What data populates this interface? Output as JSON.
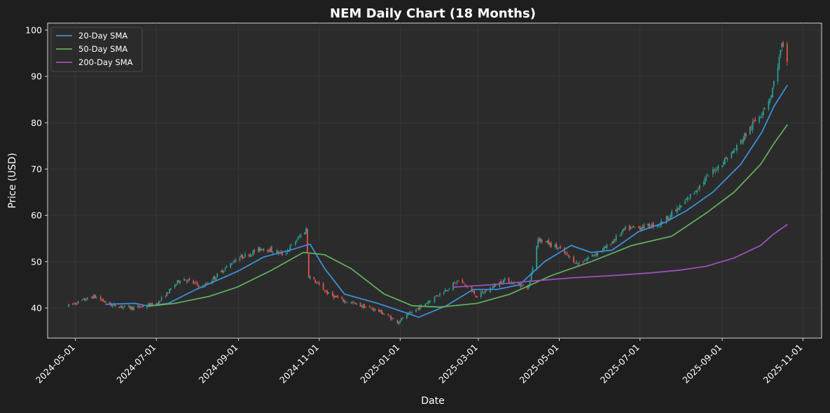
{
  "chart_data": {
    "type": "candlestick",
    "title": "NEM Daily Chart (18 Months)",
    "xlabel": "Date",
    "ylabel": "Price (USD)",
    "ylim": [
      33.5,
      101.5
    ],
    "xlim": [
      "2024-04-10",
      "2025-11-15"
    ],
    "grid": true,
    "legend_placement": "top-left",
    "colors": {
      "background": "#1e1e1e",
      "plot_background": "#2b2b2b",
      "grid": "#3d3d3d",
      "up": "#26a69a",
      "down": "#ef5350",
      "sma20": "#3a8fd8",
      "sma50": "#5fae5f",
      "sma200": "#9b4fb8"
    },
    "x_ticks": [
      "2024-05-01",
      "2024-07-01",
      "2024-09-01",
      "2024-11-01",
      "2025-01-01",
      "2025-03-01",
      "2025-05-01",
      "2025-07-01",
      "2025-09-01",
      "2025-11-01"
    ],
    "y_ticks": [
      40,
      50,
      60,
      70,
      80,
      90,
      100
    ],
    "price_path": [
      [
        "2024-04-26",
        40.5
      ],
      [
        "2024-05-15",
        42.5
      ],
      [
        "2024-05-28",
        40.6
      ],
      [
        "2024-06-15",
        40.0
      ],
      [
        "2024-07-02",
        41.0
      ],
      [
        "2024-07-20",
        46.5
      ],
      [
        "2024-08-05",
        44.5
      ],
      [
        "2024-08-30",
        50.5
      ],
      [
        "2024-09-20",
        53.0
      ],
      [
        "2024-10-05",
        51.5
      ],
      [
        "2024-10-22",
        57.0
      ],
      [
        "2024-10-24",
        47.0
      ],
      [
        "2024-11-08",
        43.0
      ],
      [
        "2024-11-20",
        41.5
      ],
      [
        "2024-12-15",
        39.5
      ],
      [
        "2024-12-30",
        37.0
      ],
      [
        "2025-01-20",
        41.0
      ],
      [
        "2025-02-15",
        46.0
      ],
      [
        "2025-02-28",
        42.5
      ],
      [
        "2025-03-20",
        46.0
      ],
      [
        "2025-04-08",
        44.5
      ],
      [
        "2025-04-15",
        55.0
      ],
      [
        "2025-04-30",
        53.0
      ],
      [
        "2025-05-15",
        49.5
      ],
      [
        "2025-06-05",
        53.0
      ],
      [
        "2025-06-20",
        57.0
      ],
      [
        "2025-07-15",
        58.0
      ],
      [
        "2025-08-01",
        62.0
      ],
      [
        "2025-08-20",
        68.0
      ],
      [
        "2025-09-10",
        74.0
      ],
      [
        "2025-09-30",
        82.0
      ],
      [
        "2025-10-08",
        86.0
      ],
      [
        "2025-10-16",
        96.5
      ],
      [
        "2025-10-20",
        93.5
      ]
    ],
    "series": [
      {
        "name": "20-Day SMA",
        "points": [
          [
            "2024-05-24",
            40.8
          ],
          [
            "2024-06-15",
            41.0
          ],
          [
            "2024-06-25",
            40.4
          ],
          [
            "2024-07-10",
            41.0
          ],
          [
            "2024-07-31",
            44.0
          ],
          [
            "2024-08-20",
            46.5
          ],
          [
            "2024-09-01",
            48.0
          ],
          [
            "2024-09-20",
            51.0
          ],
          [
            "2024-10-10",
            52.5
          ],
          [
            "2024-10-25",
            53.8
          ],
          [
            "2024-11-05",
            48.5
          ],
          [
            "2024-11-20",
            43.0
          ],
          [
            "2024-12-15",
            41.0
          ],
          [
            "2025-01-05",
            39.0
          ],
          [
            "2025-01-15",
            38.0
          ],
          [
            "2025-02-05",
            40.5
          ],
          [
            "2025-02-25",
            44.0
          ],
          [
            "2025-03-15",
            44.0
          ],
          [
            "2025-04-01",
            45.0
          ],
          [
            "2025-04-20",
            50.0
          ],
          [
            "2025-05-10",
            53.5
          ],
          [
            "2025-05-25",
            52.0
          ],
          [
            "2025-06-10",
            52.5
          ],
          [
            "2025-06-30",
            56.5
          ],
          [
            "2025-07-20",
            58.5
          ],
          [
            "2025-08-05",
            61.0
          ],
          [
            "2025-08-25",
            65.0
          ],
          [
            "2025-09-15",
            71.0
          ],
          [
            "2025-10-01",
            78.0
          ],
          [
            "2025-10-10",
            83.5
          ],
          [
            "2025-10-20",
            88.0
          ]
        ]
      },
      {
        "name": "50-Day SMA",
        "points": [
          [
            "2024-06-25",
            40.4
          ],
          [
            "2024-07-15",
            41.0
          ],
          [
            "2024-08-10",
            42.5
          ],
          [
            "2024-08-31",
            44.5
          ],
          [
            "2024-09-25",
            48.0
          ],
          [
            "2024-10-20",
            52.0
          ],
          [
            "2024-11-05",
            51.5
          ],
          [
            "2024-11-25",
            48.5
          ],
          [
            "2024-12-20",
            43.0
          ],
          [
            "2025-01-10",
            40.5
          ],
          [
            "2025-01-31",
            40.2
          ],
          [
            "2025-02-28",
            41.0
          ],
          [
            "2025-03-25",
            43.0
          ],
          [
            "2025-04-25",
            47.0
          ],
          [
            "2025-05-25",
            50.0
          ],
          [
            "2025-06-25",
            53.5
          ],
          [
            "2025-07-25",
            55.5
          ],
          [
            "2025-08-20",
            60.5
          ],
          [
            "2025-09-10",
            65.0
          ],
          [
            "2025-09-30",
            71.0
          ],
          [
            "2025-10-10",
            75.5
          ],
          [
            "2025-10-20",
            79.5
          ]
        ]
      },
      {
        "name": "200-Day SMA",
        "points": [
          [
            "2025-02-10",
            44.5
          ],
          [
            "2025-03-10",
            45.0
          ],
          [
            "2025-04-10",
            45.8
          ],
          [
            "2025-05-10",
            46.5
          ],
          [
            "2025-06-10",
            47.0
          ],
          [
            "2025-07-10",
            47.6
          ],
          [
            "2025-08-01",
            48.2
          ],
          [
            "2025-08-20",
            49.0
          ],
          [
            "2025-09-10",
            50.8
          ],
          [
            "2025-09-30",
            53.5
          ],
          [
            "2025-10-10",
            56.0
          ],
          [
            "2025-10-20",
            58.0
          ]
        ]
      }
    ]
  }
}
